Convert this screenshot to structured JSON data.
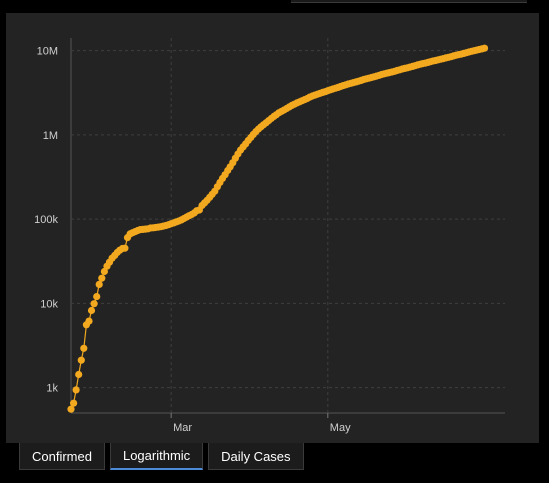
{
  "tabs": [
    {
      "label": "Confirmed",
      "active": false
    },
    {
      "label": "Logarithmic",
      "active": true
    },
    {
      "label": "Daily Cases",
      "active": false
    }
  ],
  "colors": {
    "series": "#f2a91f",
    "panel": "#232323",
    "grid": "#3f3f3f",
    "tick_text": "#cfcfcf",
    "tab_active_underline": "#4d8ad7"
  },
  "chart_data": {
    "type": "scatter",
    "title": "",
    "xlabel": "",
    "ylabel": "",
    "yscale": "log",
    "ylim": [
      500,
      12000000
    ],
    "xlim": [
      "2020-01-22",
      "2020-07-09"
    ],
    "y_ticks": [
      {
        "value": 1000,
        "label": "1k"
      },
      {
        "value": 10000,
        "label": "10k"
      },
      {
        "value": 100000,
        "label": "100k"
      },
      {
        "value": 1000000,
        "label": "1M"
      },
      {
        "value": 10000000,
        "label": "10M"
      }
    ],
    "x_ticks": [
      {
        "value": "2020-03-01",
        "label": "Mar"
      },
      {
        "value": "2020-05-01",
        "label": "May"
      }
    ],
    "grid": true,
    "series": [
      {
        "points": [
          [
            "2020-01-22",
            555
          ],
          [
            "2020-01-23",
            654
          ],
          [
            "2020-01-24",
            941
          ],
          [
            "2020-01-25",
            1434
          ],
          [
            "2020-01-26",
            2118
          ],
          [
            "2020-01-27",
            2927
          ],
          [
            "2020-01-28",
            5578
          ],
          [
            "2020-01-29",
            6166
          ],
          [
            "2020-01-30",
            8234
          ],
          [
            "2020-01-31",
            9927
          ],
          [
            "2020-02-01",
            12038
          ],
          [
            "2020-02-02",
            16787
          ],
          [
            "2020-02-03",
            19887
          ],
          [
            "2020-02-04",
            23898
          ],
          [
            "2020-02-05",
            27643
          ],
          [
            "2020-02-06",
            30802
          ],
          [
            "2020-02-07",
            34395
          ],
          [
            "2020-02-08",
            37129
          ],
          [
            "2020-02-09",
            40160
          ],
          [
            "2020-02-10",
            42768
          ],
          [
            "2020-02-11",
            44811
          ],
          [
            "2020-02-12",
            45229
          ],
          [
            "2020-02-13",
            60374
          ],
          [
            "2020-02-14",
            66887
          ],
          [
            "2020-02-15",
            69032
          ],
          [
            "2020-02-16",
            71226
          ],
          [
            "2020-02-17",
            73260
          ],
          [
            "2020-02-18",
            75138
          ],
          [
            "2020-02-19",
            75641
          ],
          [
            "2020-02-20",
            76199
          ],
          [
            "2020-02-21",
            76843
          ],
          [
            "2020-02-22",
            78599
          ],
          [
            "2020-02-23",
            78985
          ],
          [
            "2020-02-24",
            79570
          ],
          [
            "2020-02-25",
            80415
          ],
          [
            "2020-02-26",
            81397
          ],
          [
            "2020-02-27",
            82756
          ],
          [
            "2020-02-28",
            84124
          ],
          [
            "2020-02-29",
            86013
          ],
          [
            "2020-03-01",
            88371
          ],
          [
            "2020-03-02",
            90309
          ],
          [
            "2020-03-03",
            92844
          ],
          [
            "2020-03-04",
            95124
          ],
          [
            "2020-03-05",
            97886
          ],
          [
            "2020-03-06",
            101800
          ],
          [
            "2020-03-07",
            105836
          ],
          [
            "2020-03-08",
            109835
          ],
          [
            "2020-03-09",
            113582
          ],
          [
            "2020-03-10",
            118582
          ],
          [
            "2020-03-11",
            125865
          ],
          [
            "2020-03-12",
            128343
          ],
          [
            "2020-03-13",
            145193
          ],
          [
            "2020-03-14",
            156099
          ],
          [
            "2020-03-15",
            167447
          ],
          [
            "2020-03-16",
            181546
          ],
          [
            "2020-03-17",
            197168
          ],
          [
            "2020-03-18",
            214915
          ],
          [
            "2020-03-19",
            242713
          ],
          [
            "2020-03-20",
            272167
          ],
          [
            "2020-03-21",
            304528
          ],
          [
            "2020-03-22",
            336953
          ],
          [
            "2020-03-23",
            378231
          ],
          [
            "2020-03-24",
            418041
          ],
          [
            "2020-03-25",
            467653
          ],
          [
            "2020-03-26",
            529591
          ],
          [
            "2020-03-27",
            593291
          ],
          [
            "2020-03-28",
            660706
          ],
          [
            "2020-03-29",
            720117
          ],
          [
            "2020-03-30",
            782365
          ],
          [
            "2020-03-31",
            857487
          ],
          [
            "2020-04-01",
            932605
          ],
          [
            "2020-04-02",
            1013157
          ],
          [
            "2020-04-03",
            1095917
          ],
          [
            "2020-04-04",
            1176060
          ],
          [
            "2020-04-05",
            1249754
          ],
          [
            "2020-04-06",
            1321481
          ],
          [
            "2020-04-07",
            1396476
          ],
          [
            "2020-04-08",
            1479804
          ],
          [
            "2020-04-09",
            1565278
          ],
          [
            "2020-04-10",
            1657526
          ],
          [
            "2020-04-11",
            1735650
          ],
          [
            "2020-04-12",
            1834721
          ],
          [
            "2020-04-13",
            1904838
          ],
          [
            "2020-04-14",
            1976191
          ],
          [
            "2020-04-15",
            2056054
          ],
          [
            "2020-04-16",
            2152437
          ],
          [
            "2020-04-17",
            2240190
          ],
          [
            "2020-04-18",
            2317758
          ],
          [
            "2020-04-19",
            2401378
          ],
          [
            "2020-04-20",
            2472259
          ],
          [
            "2020-04-21",
            2549123
          ],
          [
            "2020-04-22",
            2624068
          ],
          [
            "2020-04-23",
            2708885
          ],
          [
            "2020-04-24",
            2811193
          ],
          [
            "2020-04-25",
            2896746
          ],
          [
            "2020-04-26",
            2971475
          ],
          [
            "2020-04-27",
            3041764
          ],
          [
            "2020-04-28",
            3116398
          ],
          [
            "2020-04-29",
            3193886
          ],
          [
            "2020-04-30",
            3256846
          ],
          [
            "2020-05-01",
            3343777
          ],
          [
            "2020-05-02",
            3427343
          ],
          [
            "2020-05-03",
            3506729
          ],
          [
            "2020-05-04",
            3583055
          ],
          [
            "2020-05-05",
            3662691
          ],
          [
            "2020-05-06",
            3755341
          ],
          [
            "2020-05-07",
            3845718
          ],
          [
            "2020-05-08",
            3938064
          ],
          [
            "2020-05-09",
            4024009
          ],
          [
            "2020-05-10",
            4101699
          ],
          [
            "2020-05-11",
            4177504
          ],
          [
            "2020-05-12",
            4261955
          ],
          [
            "2020-05-13",
            4347018
          ],
          [
            "2020-05-14",
            4442163
          ],
          [
            "2020-05-15",
            4542347
          ],
          [
            "2020-05-16",
            4634068
          ],
          [
            "2020-05-17",
            4713620
          ],
          [
            "2020-05-18",
            4801943
          ],
          [
            "2020-05-19",
            4897492
          ],
          [
            "2020-05-20",
            4996472
          ],
          [
            "2020-05-21",
            5102424
          ],
          [
            "2020-05-22",
            5210817
          ],
          [
            "2020-05-23",
            5310362
          ],
          [
            "2020-05-24",
            5407613
          ],
          [
            "2020-05-25",
            5495061
          ],
          [
            "2020-05-26",
            5589626
          ],
          [
            "2020-05-27",
            5691790
          ],
          [
            "2020-05-28",
            5808946
          ],
          [
            "2020-05-29",
            5930220
          ],
          [
            "2020-05-30",
            6059017
          ],
          [
            "2020-05-31",
            6166946
          ],
          [
            "2020-06-01",
            6265852
          ],
          [
            "2020-06-02",
            6380252
          ],
          [
            "2020-06-03",
            6510614
          ],
          [
            "2020-06-04",
            6640085
          ],
          [
            "2020-06-05",
            6776058
          ],
          [
            "2020-06-06",
            6906097
          ],
          [
            "2020-06-07",
            7023264
          ],
          [
            "2020-06-08",
            7127754
          ],
          [
            "2020-06-09",
            7254512
          ],
          [
            "2020-06-10",
            7394386
          ],
          [
            "2020-06-11",
            7530434
          ],
          [
            "2020-06-12",
            7654325
          ],
          [
            "2020-06-13",
            7787573
          ],
          [
            "2020-06-14",
            7923285
          ],
          [
            "2020-06-15",
            8051622
          ],
          [
            "2020-06-16",
            8203512
          ],
          [
            "2020-06-17",
            8350000
          ],
          [
            "2020-06-18",
            8491000
          ],
          [
            "2020-06-19",
            8674000
          ],
          [
            "2020-06-20",
            8842000
          ],
          [
            "2020-06-21",
            8976000
          ],
          [
            "2020-06-22",
            9113000
          ],
          [
            "2020-06-23",
            9281000
          ],
          [
            "2020-06-24",
            9453000
          ],
          [
            "2020-06-25",
            9634000
          ],
          [
            "2020-06-26",
            9825000
          ],
          [
            "2020-06-27",
            9999000
          ],
          [
            "2020-06-28",
            10160000
          ],
          [
            "2020-06-29",
            10323000
          ],
          [
            "2020-06-30",
            10490000
          ],
          [
            "2020-07-01",
            10700000
          ]
        ]
      }
    ]
  }
}
